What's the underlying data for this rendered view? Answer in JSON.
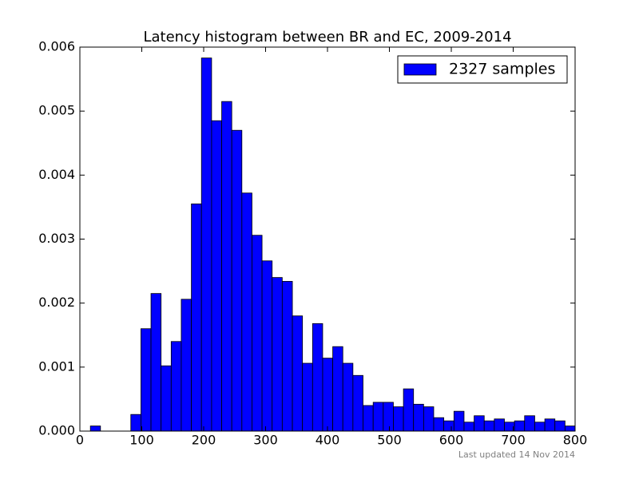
{
  "chart_data": {
    "type": "histogram",
    "title": "Latency histogram between BR and EC, 2009-2014",
    "annotation": "Last updated 14 Nov 2014",
    "series": [
      {
        "name": "2327 samples",
        "color": "#0000ff",
        "bins": [
          17.0,
          33.3,
          49.6,
          65.9,
          82.3,
          98.6,
          114.9,
          131.2,
          147.5,
          163.8,
          180.1,
          196.4,
          212.8,
          229.1,
          245.4,
          261.7,
          278.0,
          294.3,
          310.6,
          326.9,
          343.3,
          359.6,
          375.9,
          392.2,
          408.5,
          424.8,
          441.1,
          457.4,
          473.8,
          490.1,
          506.4,
          522.7,
          539.0,
          555.3,
          571.6,
          587.9,
          604.3,
          620.6,
          636.9,
          653.2,
          669.5,
          685.8,
          702.1,
          718.4,
          734.8,
          751.1,
          767.4,
          783.7,
          800.0
        ],
        "values": [
          8e-05,
          0,
          0,
          0,
          0.00026,
          0.0016,
          0.00215,
          0.00102,
          0.0014,
          0.00206,
          0.00355,
          0.00583,
          0.00485,
          0.00515,
          0.0047,
          0.00372,
          0.00306,
          0.00266,
          0.0024,
          0.00234,
          0.0018,
          0.00106,
          0.00168,
          0.00114,
          0.00132,
          0.00106,
          0.00087,
          0.0004,
          0.00045,
          0.00045,
          0.00038,
          0.00066,
          0.00042,
          0.00038,
          0.00021,
          0.00016,
          0.00031,
          0.00014,
          0.00024,
          0.00016,
          0.00019,
          0.00014,
          0.00016,
          0.00024,
          0.00014,
          0.00019,
          0.00016,
          8e-05
        ]
      }
    ],
    "xlim": [
      0,
      800
    ],
    "xticks": [
      0,
      100,
      200,
      300,
      400,
      500,
      600,
      700,
      800
    ],
    "ylim": [
      0,
      0.006
    ],
    "yticks": [
      {
        "value": 0,
        "label": "0.000"
      },
      {
        "value": 0.001,
        "label": "0.001"
      },
      {
        "value": 0.002,
        "label": "0.002"
      },
      {
        "value": 0.003,
        "label": "0.003"
      },
      {
        "value": 0.004,
        "label": "0.004"
      },
      {
        "value": 0.005,
        "label": "0.005"
      },
      {
        "value": 0.006,
        "label": "0.006"
      }
    ],
    "grid": false,
    "legend": "upper right"
  }
}
